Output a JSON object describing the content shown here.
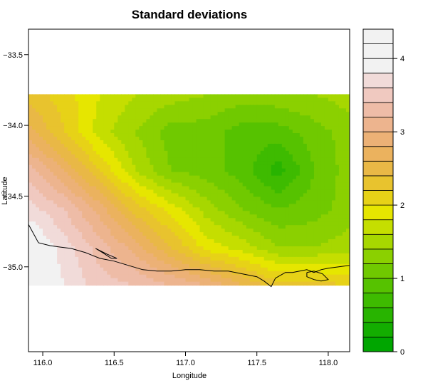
{
  "chart_data": {
    "type": "heatmap",
    "title": "Standard deviations",
    "xlabel": "Longitude",
    "ylabel": "Latitude",
    "xlim": [
      115.9,
      118.15
    ],
    "ylim": [
      -35.6,
      -33.32
    ],
    "x_ticks": [
      116.0,
      116.5,
      117.0,
      117.5,
      118.0
    ],
    "x_tick_labels": [
      "116.0",
      "116.5",
      "117.0",
      "117.5",
      "118.0"
    ],
    "y_ticks": [
      -33.5,
      -34.0,
      -34.5,
      -35.0
    ],
    "y_tick_labels": [
      "−33.5",
      "−34.0",
      "−34.5",
      "−35.0"
    ],
    "data_extent": {
      "lon": [
        115.9,
        118.15
      ],
      "lat": [
        -35.13,
        -33.78
      ]
    },
    "grid_lon": [
      115.9,
      116.15,
      116.4,
      116.65,
      116.9,
      117.15,
      117.4,
      117.65,
      117.9,
      118.15
    ],
    "grid_lat": [
      -33.78,
      -34.05,
      -34.32,
      -34.59,
      -34.86,
      -35.13
    ],
    "values": [
      [
        2.3,
        2.1,
        1.8,
        1.6,
        1.5,
        1.4,
        1.3,
        1.35,
        1.4,
        1.5
      ],
      [
        2.7,
        2.2,
        1.7,
        1.4,
        1.1,
        1.1,
        0.9,
        0.9,
        1.1,
        1.3
      ],
      [
        3.3,
        2.8,
        2.2,
        1.6,
        1.2,
        1.1,
        0.9,
        0.5,
        1.0,
        1.3
      ],
      [
        3.7,
        3.4,
        2.9,
        2.3,
        1.9,
        1.5,
        1.2,
        1.0,
        1.1,
        1.3
      ],
      [
        4.1,
        3.7,
        3.3,
        2.9,
        2.4,
        1.9,
        1.7,
        1.4,
        1.4,
        1.5
      ],
      [
        4.1,
        3.8,
        3.5,
        3.4,
        3.2,
        3.0,
        2.6,
        2.3,
        2.3,
        2.2
      ]
    ],
    "legend": {
      "placement": "right",
      "levels": [
        0,
        0.2,
        0.4,
        0.6,
        0.8,
        1.0,
        1.2,
        1.4,
        1.6,
        1.8,
        2.0,
        2.2,
        2.4,
        2.6,
        2.8,
        3.0,
        3.2,
        3.4,
        3.6,
        3.8,
        4.0,
        4.2,
        4.4
      ],
      "ticks": [
        0,
        1,
        2,
        3,
        4
      ],
      "tick_labels": [
        "0",
        "1",
        "2",
        "3",
        "4"
      ],
      "colors": [
        "#00A600",
        "#13AD00",
        "#28B400",
        "#3EBB00",
        "#56C200",
        "#70C900",
        "#8BD000",
        "#A7D700",
        "#C5DE00",
        "#E6E600",
        "#E7D217",
        "#E8C32E",
        "#E9B846",
        "#EBB25E",
        "#ECB176",
        "#EDB48E",
        "#EEBCA7",
        "#F0C9C0",
        "#F1DBD9",
        "#F2F2F2",
        "#F2F2F2",
        "#F2F2F2"
      ]
    },
    "coastline": {
      "mainland": [
        [
          115.9,
          -34.7
        ],
        [
          115.97,
          -34.83
        ],
        [
          116.05,
          -34.85
        ],
        [
          116.12,
          -34.86
        ],
        [
          116.2,
          -34.87
        ],
        [
          116.3,
          -34.9
        ],
        [
          116.4,
          -34.94
        ],
        [
          116.5,
          -34.96
        ],
        [
          116.6,
          -34.99
        ],
        [
          116.7,
          -35.02
        ],
        [
          116.8,
          -35.03
        ],
        [
          116.9,
          -35.03
        ],
        [
          117.0,
          -35.02
        ],
        [
          117.1,
          -35.02
        ],
        [
          117.2,
          -35.03
        ],
        [
          117.3,
          -35.03
        ],
        [
          117.4,
          -35.05
        ],
        [
          117.5,
          -35.07
        ],
        [
          117.55,
          -35.1
        ],
        [
          117.6,
          -35.14
        ],
        [
          117.63,
          -35.08
        ],
        [
          117.7,
          -35.04
        ],
        [
          117.75,
          -35.04
        ],
        [
          117.8,
          -35.03
        ],
        [
          117.85,
          -35.02
        ],
        [
          117.9,
          -35.04
        ],
        [
          117.95,
          -35.02
        ],
        [
          118.0,
          -35.01
        ],
        [
          118.15,
          -34.99
        ]
      ],
      "inlets": [
        [
          [
            116.37,
            -34.87
          ],
          [
            116.42,
            -34.9
          ],
          [
            116.48,
            -34.94
          ],
          [
            116.52,
            -34.94
          ],
          [
            116.45,
            -34.91
          ],
          [
            116.39,
            -34.88
          ],
          [
            116.37,
            -34.87
          ]
        ],
        [
          [
            117.85,
            -35.04
          ],
          [
            117.9,
            -35.03
          ],
          [
            117.96,
            -35.05
          ],
          [
            118.0,
            -35.09
          ],
          [
            117.95,
            -35.1
          ],
          [
            117.9,
            -35.09
          ],
          [
            117.85,
            -35.07
          ],
          [
            117.85,
            -35.04
          ]
        ]
      ]
    }
  }
}
